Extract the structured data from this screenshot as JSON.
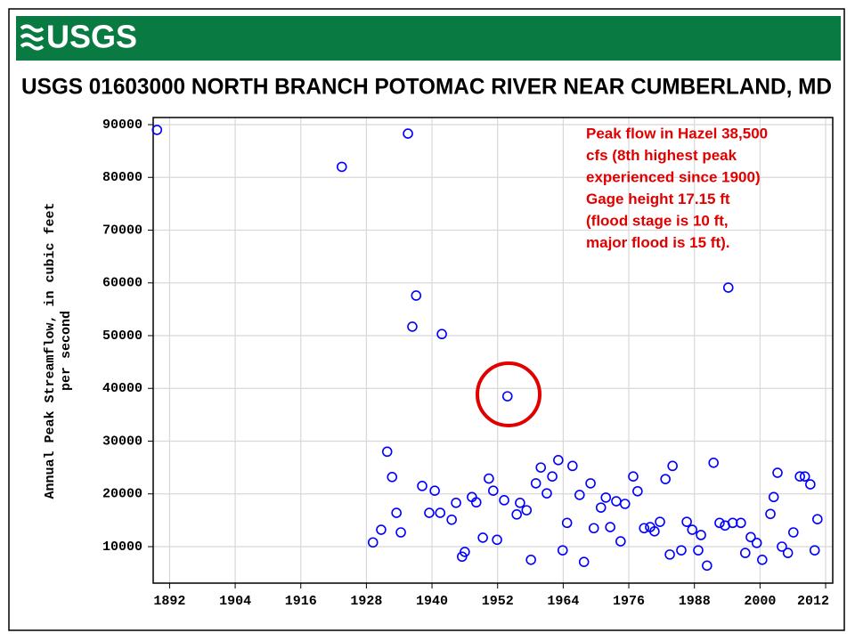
{
  "chart_data": {
    "type": "scatter",
    "logo_text": "USGS",
    "title": "USGS 01603000 NORTH BRANCH POTOMAC RIVER NEAR CUMBERLAND, MD",
    "y_label": [
      "Annual Peak Streamflow, in cubic feet",
      "per second"
    ],
    "annotation": [
      "Peak flow in Hazel 38,500",
      "cfs (8th highest peak",
      "experienced since 1900)",
      "Gage height  17.15 ft",
      "(flood stage is 10 ft,",
      "major flood is 15 ft)."
    ],
    "color": "#0000ff",
    "grid": true,
    "xlim": [
      1889.0,
      2013.3
    ],
    "ylim": [
      3080,
      91350
    ],
    "xticks": [
      1892,
      1904,
      1916,
      1928,
      1940,
      1952,
      1964,
      1976,
      1988,
      2000,
      2012
    ],
    "yticks": [
      10000,
      20000,
      30000,
      40000,
      50000,
      60000,
      70000,
      80000,
      90000
    ],
    "x": [
      1889.7,
      1923.5,
      1935.6,
      1936.4,
      1937.1,
      1941.8,
      1953.8,
      1994.2,
      1929.2,
      1930.7,
      1931.8,
      1932.7,
      1933.5,
      1934.3,
      1938.2,
      1939.5,
      1940.5,
      1941.5,
      1943.6,
      1944.4,
      1945.5,
      1946.0,
      1947.3,
      1948.1,
      1949.3,
      1950.4,
      1951.2,
      1951.9,
      1953.2,
      1955.5,
      1956.1,
      1957.3,
      1958.1,
      1959.0,
      1959.9,
      1961.0,
      1962.0,
      1963.1,
      1963.9,
      1964.7,
      1965.7,
      1967.0,
      1967.8,
      1969.0,
      1969.6,
      1970.9,
      1971.8,
      1972.6,
      1973.7,
      1974.5,
      1975.3,
      1976.8,
      1977.6,
      1978.8,
      1979.9,
      1980.7,
      1981.7,
      1982.7,
      1983.5,
      1984.0,
      1985.6,
      1986.6,
      1987.6,
      1988.7,
      1989.2,
      1990.3,
      1991.5,
      1992.6,
      1993.6,
      1995.0,
      1996.5,
      1997.3,
      1998.3,
      1999.4,
      2000.4,
      2001.9,
      2002.5,
      2003.2,
      2004.0,
      2005.1,
      2006.1,
      2007.3,
      2008.2,
      2009.2,
      2010.0,
      2010.5
    ],
    "values": [
      89000,
      82000,
      88300,
      51700,
      57600,
      50300,
      38500,
      59100,
      10800,
      13200,
      28000,
      23200,
      16400,
      12700,
      21500,
      16400,
      20600,
      16400,
      15100,
      18300,
      8100,
      9000,
      19400,
      18400,
      11700,
      22900,
      20600,
      11300,
      18800,
      16100,
      18300,
      16900,
      7500,
      22000,
      25000,
      20100,
      23300,
      26400,
      9300,
      14500,
      25300,
      19800,
      7100,
      22000,
      13500,
      17400,
      19300,
      13700,
      18600,
      11000,
      18100,
      23300,
      20500,
      13500,
      13700,
      12900,
      14700,
      22800,
      8500,
      25300,
      9300,
      14700,
      13200,
      9300,
      12200,
      6400,
      25900,
      14500,
      14000,
      14500,
      14500,
      8800,
      11800,
      10700,
      7500,
      16200,
      19400,
      24000,
      10000,
      8800,
      12700,
      23300,
      23300,
      21800,
      9300,
      15200
    ]
  }
}
